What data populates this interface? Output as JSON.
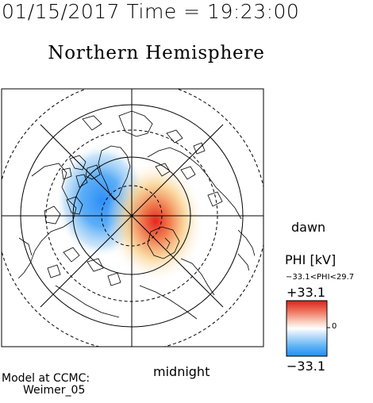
{
  "header": {
    "timestamp": "01/15/2017 Time = 19:23:00",
    "title": "Northern Hemisphere"
  },
  "map": {
    "projection": "polar",
    "hemisphere": "northern",
    "labels": {
      "dawn": "dawn",
      "midnight": "midnight"
    },
    "colors": {
      "negative": "#3a9bff",
      "positive": "#e8322a",
      "neutral": "#ffffff",
      "coastline": "#000000"
    }
  },
  "legend": {
    "title": "PHI [kV]",
    "range_text": "−33.1<PHI<29.7",
    "max_label": "+33.1",
    "min_label": "−33.1",
    "zero_label": "0",
    "value_min": -33.1,
    "value_max": 33.1,
    "data_min": -33.1,
    "data_max": 29.7
  },
  "credit": {
    "line1": "Model at CCMC:",
    "line2": "Weimer_05"
  }
}
